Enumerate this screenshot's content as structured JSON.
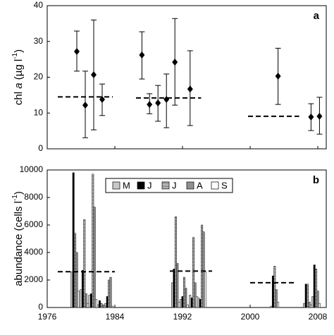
{
  "chart_data": [
    {
      "type": "errorbar",
      "panel_label": "a",
      "ylabel_parts": [
        "chl ",
        "a",
        " (µg l",
        "-1",
        ")"
      ],
      "xlim": [
        1976,
        2009
      ],
      "ylim": [
        0,
        40
      ],
      "yticks": [
        0,
        10,
        20,
        30,
        40
      ],
      "x": [
        1979.5,
        1980.5,
        1981.5,
        1982.5,
        1987.2,
        1988.1,
        1989.1,
        1990.1,
        1991.1,
        1992.9,
        2003.3,
        2007.2,
        2008.2
      ],
      "values": [
        27.2,
        12.2,
        20.7,
        13.8,
        26.2,
        12.4,
        12.8,
        13.8,
        24.2,
        16.7,
        20.3,
        8.9,
        9.1
      ],
      "lower": [
        21.7,
        3.1,
        5.3,
        9.3,
        19.5,
        9.8,
        7.7,
        5.9,
        12.2,
        6.5,
        12.4,
        5.1,
        4.1
      ],
      "upper": [
        32.9,
        21.7,
        36.0,
        18.1,
        32.7,
        15.4,
        17.7,
        20.9,
        36.4,
        27.4,
        28.1,
        12.6,
        14.4
      ],
      "color": "#000000",
      "means": [
        {
          "x": [
            1977.25,
            1983.75
          ],
          "y": 14.5
        },
        {
          "x": [
            1986.5,
            1994.2
          ],
          "y": 14.2
        },
        {
          "x": [
            1999.75,
            2005.8
          ],
          "y": 9.1
        }
      ]
    },
    {
      "type": "bar",
      "panel_label": "b",
      "ylabel_parts": [
        "abundance (cells l",
        "-1",
        ")"
      ],
      "xlim": [
        1976,
        2009
      ],
      "xticks": [
        1976,
        1984,
        1992,
        2000,
        2008
      ],
      "ylim": [
        0,
        10000
      ],
      "yticks": [
        0,
        2000,
        4000,
        6000,
        8000,
        10000
      ],
      "x": [
        1979.3,
        1980.4,
        1981.4,
        1982.4,
        1983.3,
        1991.2,
        1992.2,
        1993.3,
        1994.3,
        2002.9,
        2006.8,
        2007.8
      ],
      "series": [
        {
          "name": "M",
          "color": "#c8c8c8",
          "values": [
            2600,
            1300,
            900,
            200,
            300,
            1800,
            600,
            900,
            700,
            100,
            300,
            800
          ]
        },
        {
          "name": "J",
          "color": "#000000",
          "values": [
            9800,
            2700,
            1000,
            500,
            800,
            2800,
            800,
            700,
            600,
            2300,
            1700,
            3100
          ]
        },
        {
          "name": "J",
          "color": "#ffffff",
          "pattern": "horizontal-lines",
          "values": [
            5400,
            6400,
            9700,
            300,
            2000,
            6600,
            2200,
            5100,
            6000,
            3000,
            1700,
            2800
          ]
        },
        {
          "name": "A",
          "color": "#909090",
          "values": [
            4000,
            1000,
            7300,
            200,
            2200,
            3200,
            1400,
            1800,
            5500,
            1300,
            400,
            1200
          ]
        },
        {
          "name": "S",
          "color": "#ffffff",
          "values": [
            1200,
            300,
            600,
            100,
            100,
            400,
            200,
            800,
            2600,
            400,
            200,
            300
          ]
        }
      ],
      "means": [
        {
          "x": [
            1977.25,
            1984
          ],
          "y": 2600
        },
        {
          "x": [
            1990.5,
            1995.5
          ],
          "y": 2650
        },
        {
          "x": [
            2000,
            2005.5
          ],
          "y": 1800
        }
      ]
    }
  ]
}
